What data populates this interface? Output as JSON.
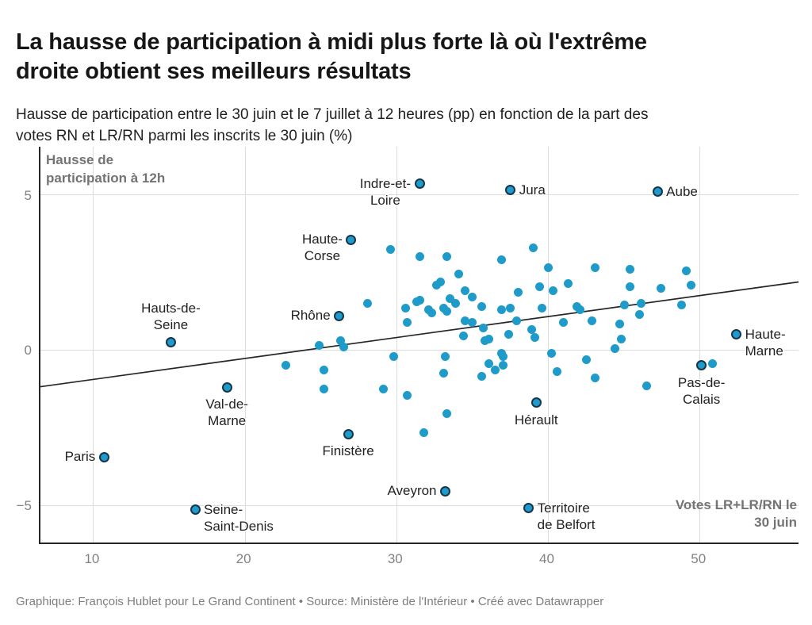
{
  "header": {
    "title": "La hausse de participation à midi plus forte là où l'extrême\ndroite obtient ses meilleurs résultats",
    "subtitle": "Hausse de participation entre le 30 juin et le 7 juillet à 12 heures (pp) en fonction de la part des\nvotes RN et LR/RN parmi les inscrits le 30 juin (%)"
  },
  "footer": {
    "text": "Graphique: François Hublet pour Le Grand Continent • Source: Ministère de l'Intérieur • Créé avec Datawrapper"
  },
  "chart_data": {
    "type": "scatter",
    "x_axis": {
      "label": "Votes LR+LR/RN le\n30 juin",
      "ticks": [
        10,
        20,
        30,
        40,
        50
      ],
      "range": [
        6.5,
        56.5
      ],
      "unit": "%"
    },
    "y_axis": {
      "label": "Hausse de\nparticipation à 12h",
      "ticks": [
        5,
        0,
        -5
      ],
      "tick_labels": [
        "5",
        "0",
        "−5"
      ],
      "range": [
        -6.2,
        6.55
      ],
      "unit": "pp"
    },
    "grid": "on",
    "trend_line": {
      "slope": 0.0675,
      "intercept": -1.62
    },
    "colors": {
      "dot": "#1e9bc9",
      "dot_outline": "#16364d",
      "grid": "#dcdcdc",
      "axis": "#262626",
      "trend": "#262626"
    },
    "labeled_points": [
      {
        "name": "Paris",
        "x": 10.7,
        "y": -3.45,
        "label_position": "left"
      },
      {
        "name": "Hauts-de-\nSeine",
        "x": 15.1,
        "y": 0.25,
        "label_position": "above"
      },
      {
        "name": "Seine-\nSaint-Denis",
        "x": 16.7,
        "y": -5.15,
        "label_position": "right"
      },
      {
        "name": "Val-de-\nMarne",
        "x": 18.8,
        "y": -1.2,
        "label_position": "below"
      },
      {
        "name": "Rhône",
        "x": 26.2,
        "y": 1.1,
        "label_position": "left"
      },
      {
        "name": "Finistère",
        "x": 26.8,
        "y": -2.7,
        "label_position": "below"
      },
      {
        "name": "Haute-\nCorse",
        "x": 27.0,
        "y": 3.55,
        "label_position": "left"
      },
      {
        "name": "Indre-et-\nLoire",
        "x": 31.5,
        "y": 5.35,
        "label_position": "left"
      },
      {
        "name": "Aveyron",
        "x": 33.2,
        "y": -4.55,
        "label_position": "left"
      },
      {
        "name": "Jura",
        "x": 37.5,
        "y": 5.15,
        "label_position": "right"
      },
      {
        "name": "Territoire\nde Belfort",
        "x": 38.7,
        "y": -5.1,
        "label_position": "right"
      },
      {
        "name": "Hérault",
        "x": 39.2,
        "y": -1.7,
        "label_position": "below"
      },
      {
        "name": "Aube",
        "x": 47.2,
        "y": 5.1,
        "label_position": "right"
      },
      {
        "name": "Pas-de-\nCalais",
        "x": 50.1,
        "y": -0.5,
        "label_position": "below"
      },
      {
        "name": "Haute-\nMarne",
        "x": 52.4,
        "y": 0.5,
        "label_position": "right"
      }
    ],
    "points": [
      [
        22.7,
        -0.5
      ],
      [
        24.9,
        0.15
      ],
      [
        25.2,
        -0.65
      ],
      [
        25.2,
        -1.25
      ],
      [
        26.3,
        0.3
      ],
      [
        26.5,
        0.1
      ],
      [
        28.1,
        1.5
      ],
      [
        29.6,
        3.25
      ],
      [
        29.8,
        -0.2
      ],
      [
        29.1,
        -1.25
      ],
      [
        30.6,
        1.35
      ],
      [
        30.7,
        0.9
      ],
      [
        30.7,
        -1.45
      ],
      [
        31.3,
        1.55
      ],
      [
        31.5,
        1.6
      ],
      [
        31.5,
        3.0
      ],
      [
        31.8,
        -2.65
      ],
      [
        32.1,
        1.3
      ],
      [
        32.3,
        1.2
      ],
      [
        32.6,
        2.1
      ],
      [
        32.9,
        2.2
      ],
      [
        33.3,
        3.0
      ],
      [
        33.3,
        -2.05
      ],
      [
        33.1,
        1.35
      ],
      [
        33.3,
        1.25
      ],
      [
        33.2,
        -0.2
      ],
      [
        33.1,
        -0.75
      ],
      [
        34.1,
        2.45
      ],
      [
        34.5,
        1.9
      ],
      [
        34.4,
        0.45
      ],
      [
        34.5,
        0.95
      ],
      [
        35.0,
        1.7
      ],
      [
        35.0,
        0.9
      ],
      [
        33.9,
        1.5
      ],
      [
        33.5,
        1.65
      ],
      [
        35.6,
        1.4
      ],
      [
        35.7,
        0.7
      ],
      [
        35.8,
        0.3
      ],
      [
        36.1,
        0.35
      ],
      [
        35.6,
        -0.85
      ],
      [
        36.1,
        -0.45
      ],
      [
        36.5,
        -0.65
      ],
      [
        37.0,
        -0.2
      ],
      [
        37.0,
        -0.5
      ],
      [
        36.9,
        2.9
      ],
      [
        36.9,
        1.3
      ],
      [
        37.5,
        1.35
      ],
      [
        38.0,
        1.85
      ],
      [
        37.9,
        0.95
      ],
      [
        37.4,
        0.5
      ],
      [
        36.9,
        -0.1
      ],
      [
        39.0,
        3.3
      ],
      [
        39.4,
        2.05
      ],
      [
        40.3,
        1.9
      ],
      [
        40.0,
        2.65
      ],
      [
        38.9,
        0.65
      ],
      [
        39.1,
        0.4
      ],
      [
        39.6,
        1.35
      ],
      [
        40.2,
        -0.1
      ],
      [
        40.6,
        -0.7
      ],
      [
        41.3,
        2.15
      ],
      [
        41.9,
        1.4
      ],
      [
        42.1,
        1.3
      ],
      [
        41.0,
        0.9
      ],
      [
        42.5,
        -0.3
      ],
      [
        42.9,
        0.95
      ],
      [
        43.1,
        2.65
      ],
      [
        43.1,
        -0.9
      ],
      [
        44.4,
        0.05
      ],
      [
        44.7,
        0.85
      ],
      [
        44.8,
        0.35
      ],
      [
        45.0,
        1.45
      ],
      [
        45.4,
        2.6
      ],
      [
        45.4,
        2.05
      ],
      [
        46.0,
        1.15
      ],
      [
        46.1,
        1.5
      ],
      [
        46.5,
        -1.15
      ],
      [
        47.4,
        2.0
      ],
      [
        48.8,
        1.45
      ],
      [
        49.1,
        2.55
      ],
      [
        49.4,
        2.1
      ],
      [
        50.8,
        -0.45
      ]
    ]
  }
}
